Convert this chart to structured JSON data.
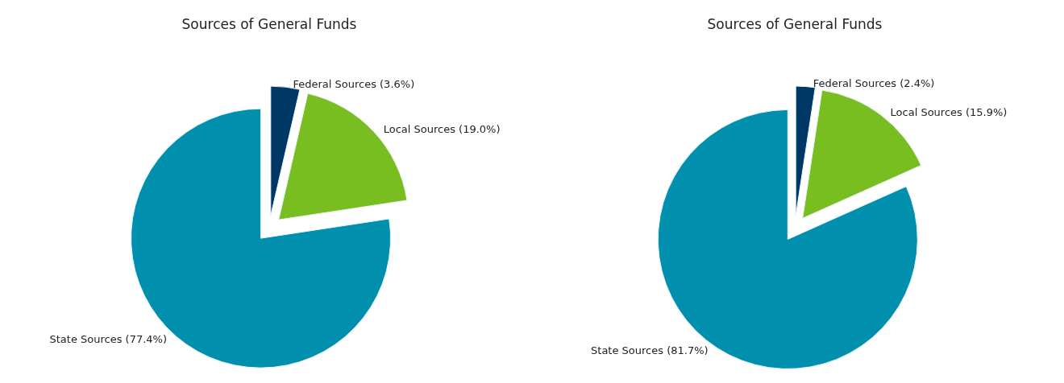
{
  "chart_data": [
    {
      "type": "pie",
      "title": "Sources of General Funds",
      "categories": [
        "Federal Sources",
        "Local Sources",
        "State Sources"
      ],
      "values": [
        3.6,
        19.0,
        77.4
      ],
      "value_labels": [
        "(3.6%)",
        "(19.0%)",
        "(77.4%)"
      ],
      "colors": [
        "#003865",
        "#78be20",
        "#008fad"
      ],
      "legend": false
    },
    {
      "type": "pie",
      "title": "Sources of General Funds",
      "categories": [
        "Federal Sources",
        "Local Sources",
        "State Sources"
      ],
      "values": [
        2.4,
        15.9,
        81.7
      ],
      "value_labels": [
        "(2.4%)",
        "(15.9%)",
        "(81.7%)"
      ],
      "colors": [
        "#003865",
        "#78be20",
        "#008fad"
      ],
      "legend": false
    }
  ]
}
